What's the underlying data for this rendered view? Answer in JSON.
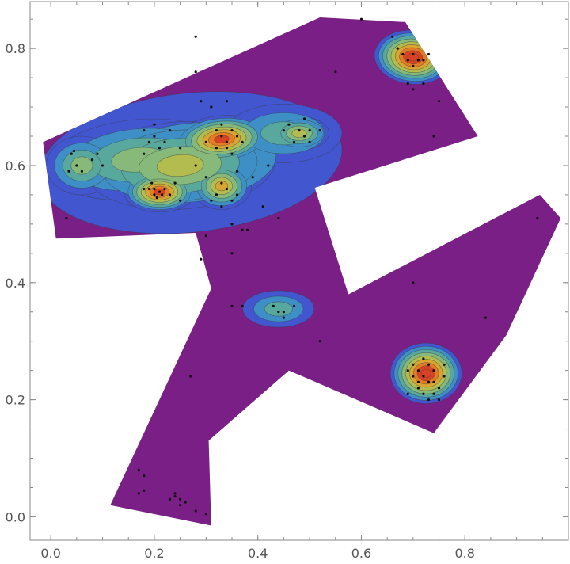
{
  "chart_data": {
    "type": "contour",
    "title": "",
    "xlabel": "",
    "ylabel": "",
    "xlim": [
      -0.04,
      1.0
    ],
    "ylim": [
      -0.04,
      0.88
    ],
    "grid": false,
    "x_ticks": [
      "0.0",
      "0.2",
      "0.4",
      "0.6",
      "0.8"
    ],
    "x_tick_values": [
      0.0,
      0.2,
      0.4,
      0.6,
      0.8
    ],
    "y_ticks": [
      "0.0",
      "0.2",
      "0.4",
      "0.6",
      "0.8"
    ],
    "y_tick_values": [
      0.0,
      0.2,
      0.4,
      0.6,
      0.8
    ],
    "colormap": "rainbow (purple low → red high)",
    "level_colors": [
      "#7a1f85",
      "#4256cf",
      "#3e8fc6",
      "#58a89d",
      "#86b97a",
      "#b3bd4f",
      "#d9a532",
      "#e47c26",
      "#d84325"
    ],
    "region_polygon": [
      [
        -0.015,
        0.64
      ],
      [
        0.52,
        0.853
      ],
      [
        0.685,
        0.845
      ],
      [
        0.825,
        0.65
      ],
      [
        0.51,
        0.562
      ],
      [
        0.575,
        0.38
      ],
      [
        0.945,
        0.55
      ],
      [
        0.985,
        0.51
      ],
      [
        0.88,
        0.31
      ],
      [
        0.74,
        0.143
      ],
      [
        0.46,
        0.25
      ],
      [
        0.305,
        0.13
      ],
      [
        0.31,
        -0.015
      ],
      [
        0.115,
        0.02
      ],
      [
        0.31,
        0.39
      ],
      [
        0.28,
        0.485
      ],
      [
        0.01,
        0.475
      ]
    ],
    "points": [
      [
        0.04,
        0.62
      ],
      [
        0.05,
        0.6
      ],
      [
        0.06,
        0.59
      ],
      [
        0.08,
        0.61
      ],
      [
        0.09,
        0.62
      ],
      [
        0.045,
        0.625
      ],
      [
        0.035,
        0.59
      ],
      [
        0.1,
        0.6
      ],
      [
        0.03,
        0.51
      ],
      [
        0.18,
        0.66
      ],
      [
        0.19,
        0.64
      ],
      [
        0.2,
        0.65
      ],
      [
        0.21,
        0.63
      ],
      [
        0.18,
        0.62
      ],
      [
        0.22,
        0.64
      ],
      [
        0.2,
        0.67
      ],
      [
        0.23,
        0.66
      ],
      [
        0.19,
        0.56
      ],
      [
        0.2,
        0.55
      ],
      [
        0.21,
        0.555
      ],
      [
        0.22,
        0.56
      ],
      [
        0.205,
        0.545
      ],
      [
        0.195,
        0.57
      ],
      [
        0.215,
        0.55
      ],
      [
        0.2,
        0.56
      ],
      [
        0.18,
        0.56
      ],
      [
        0.23,
        0.55
      ],
      [
        0.25,
        0.54
      ],
      [
        0.24,
        0.57
      ],
      [
        0.32,
        0.66
      ],
      [
        0.33,
        0.65
      ],
      [
        0.34,
        0.64
      ],
      [
        0.35,
        0.66
      ],
      [
        0.36,
        0.65
      ],
      [
        0.34,
        0.63
      ],
      [
        0.33,
        0.67
      ],
      [
        0.3,
        0.64
      ],
      [
        0.37,
        0.64
      ],
      [
        0.35,
        0.62
      ],
      [
        0.32,
        0.63
      ],
      [
        0.32,
        0.55
      ],
      [
        0.34,
        0.56
      ],
      [
        0.35,
        0.54
      ],
      [
        0.33,
        0.57
      ],
      [
        0.36,
        0.55
      ],
      [
        0.31,
        0.54
      ],
      [
        0.3,
        0.58
      ],
      [
        0.28,
        0.6
      ],
      [
        0.25,
        0.63
      ],
      [
        0.29,
        0.71
      ],
      [
        0.34,
        0.71
      ],
      [
        0.31,
        0.7
      ],
      [
        0.28,
        0.82
      ],
      [
        0.28,
        0.76
      ],
      [
        0.36,
        0.59
      ],
      [
        0.46,
        0.67
      ],
      [
        0.48,
        0.66
      ],
      [
        0.49,
        0.65
      ],
      [
        0.47,
        0.64
      ],
      [
        0.5,
        0.66
      ],
      [
        0.5,
        0.64
      ],
      [
        0.45,
        0.66
      ],
      [
        0.52,
        0.66
      ],
      [
        0.49,
        0.68
      ],
      [
        0.38,
        0.49
      ],
      [
        0.37,
        0.49
      ],
      [
        0.35,
        0.5
      ],
      [
        0.3,
        0.48
      ],
      [
        0.42,
        0.6
      ],
      [
        0.39,
        0.58
      ],
      [
        0.44,
        0.51
      ],
      [
        0.41,
        0.53
      ],
      [
        0.33,
        0.53
      ],
      [
        0.29,
        0.44
      ],
      [
        0.35,
        0.45
      ],
      [
        0.55,
        0.76
      ],
      [
        0.6,
        0.85
      ],
      [
        0.66,
        0.82
      ],
      [
        0.68,
        0.79
      ],
      [
        0.69,
        0.78
      ],
      [
        0.7,
        0.79
      ],
      [
        0.71,
        0.78
      ],
      [
        0.72,
        0.78
      ],
      [
        0.73,
        0.79
      ],
      [
        0.7,
        0.77
      ],
      [
        0.69,
        0.74
      ],
      [
        0.72,
        0.74
      ],
      [
        0.75,
        0.71
      ],
      [
        0.67,
        0.8
      ],
      [
        0.74,
        0.65
      ],
      [
        0.7,
        0.73
      ],
      [
        0.44,
        0.35
      ],
      [
        0.45,
        0.35
      ],
      [
        0.43,
        0.36
      ],
      [
        0.45,
        0.34
      ],
      [
        0.47,
        0.36
      ],
      [
        0.52,
        0.3
      ],
      [
        0.37,
        0.36
      ],
      [
        0.35,
        0.36
      ],
      [
        0.69,
        0.25
      ],
      [
        0.7,
        0.26
      ],
      [
        0.71,
        0.25
      ],
      [
        0.72,
        0.24
      ],
      [
        0.73,
        0.26
      ],
      [
        0.74,
        0.25
      ],
      [
        0.7,
        0.24
      ],
      [
        0.72,
        0.27
      ],
      [
        0.74,
        0.23
      ],
      [
        0.75,
        0.22
      ],
      [
        0.73,
        0.23
      ],
      [
        0.71,
        0.23
      ],
      [
        0.76,
        0.26
      ],
      [
        0.72,
        0.21
      ],
      [
        0.75,
        0.2
      ],
      [
        0.69,
        0.21
      ],
      [
        0.73,
        0.2
      ],
      [
        0.71,
        0.22
      ],
      [
        0.76,
        0.24
      ],
      [
        0.74,
        0.21
      ],
      [
        0.7,
        0.4
      ],
      [
        0.84,
        0.34
      ],
      [
        0.94,
        0.51
      ],
      [
        0.27,
        0.24
      ],
      [
        0.17,
        0.08
      ],
      [
        0.18,
        0.07
      ],
      [
        0.17,
        0.04
      ],
      [
        0.18,
        0.045
      ],
      [
        0.24,
        0.035
      ],
      [
        0.25,
        0.03
      ],
      [
        0.26,
        0.025
      ],
      [
        0.23,
        0.03
      ],
      [
        0.28,
        0.01
      ],
      [
        0.25,
        0.02
      ],
      [
        0.3,
        0.005
      ],
      [
        0.24,
        0.04
      ]
    ]
  }
}
